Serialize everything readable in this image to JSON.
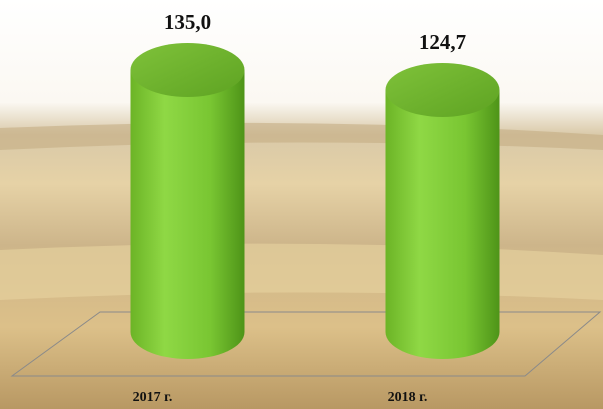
{
  "chart_data": {
    "type": "cylinder-bar",
    "categories": [
      "2017 г.",
      "2018 г."
    ],
    "values": [
      135.0,
      124.7
    ],
    "value_labels": [
      "135,0",
      "124,7"
    ],
    "color": "#7cc92e"
  }
}
